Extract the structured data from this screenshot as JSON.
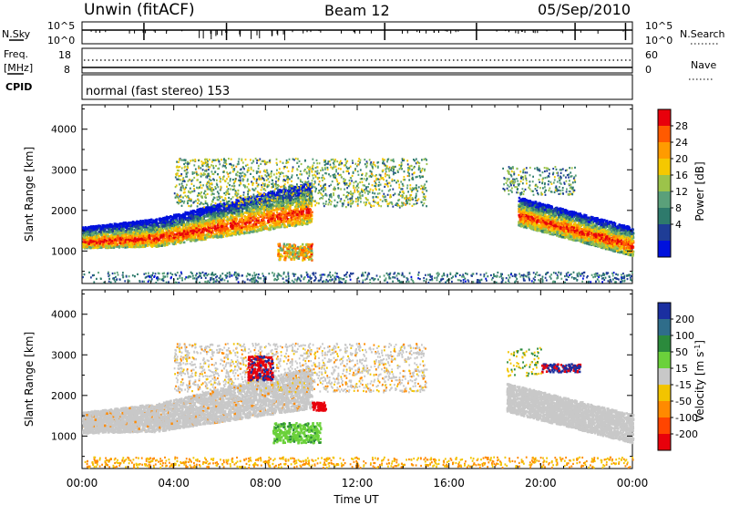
{
  "header": {
    "station": "Unwin (fitACF)",
    "beam": "Beam 12",
    "date": "05/Sep/2010"
  },
  "noise_panel": {
    "left_label": "N.Sky",
    "right_label": "N.Search",
    "left_ticks": [
      "10^5",
      "10^0"
    ],
    "right_ticks": [
      "10^5",
      "10^0"
    ]
  },
  "freq_panel": {
    "left_label_1": "Freq.",
    "left_label_2": "[MHz]",
    "right_label": "Nave",
    "left_ticks": [
      "18",
      "8"
    ],
    "right_ticks": [
      "60",
      "0"
    ]
  },
  "cpid_panel": {
    "label": "CPID",
    "text": "normal (fast stereo) 153"
  },
  "chart_data": [
    {
      "type": "heatmap",
      "name": "Power",
      "ylabel": "Slant Range [km]",
      "ylim": [
        200,
        4600
      ],
      "yticks": [
        1000,
        2000,
        3000,
        4000
      ],
      "x_range_hours": [
        0,
        24
      ],
      "colorbar": {
        "label": "Power [dB]",
        "ticks": [
          "28",
          "24",
          "20",
          "16",
          "12",
          "8",
          "4"
        ],
        "colors": [
          "#e8000b",
          "#ff5a00",
          "#ff9b00",
          "#f5c800",
          "#9cc34a",
          "#5aa07a",
          "#2e7a6c",
          "#1f3d96",
          "#0011dd"
        ]
      },
      "features": [
        {
          "description": "main echo band",
          "x": [
            0,
            10
          ],
          "range_km": [
            900,
            1900
          ],
          "power_dB": [
            12,
            28
          ]
        },
        {
          "description": "upper scatter",
          "x": [
            4,
            15
          ],
          "range_km": [
            2000,
            3300
          ],
          "power_dB": [
            4,
            20
          ]
        },
        {
          "description": "evening band",
          "x": [
            19,
            24
          ],
          "range_km": [
            1000,
            2300
          ],
          "power_dB": [
            8,
            28
          ]
        },
        {
          "description": "ground scatter near range",
          "x": [
            0,
            24
          ],
          "range_km": [
            200,
            500
          ],
          "power_dB": [
            4,
            12
          ]
        }
      ]
    },
    {
      "type": "heatmap",
      "name": "Velocity",
      "ylabel": "Slant Range [km]",
      "ylim": [
        200,
        4600
      ],
      "yticks": [
        1000,
        2000,
        3000,
        4000
      ],
      "x_range_hours": [
        0,
        24
      ],
      "colorbar": {
        "label": "Velocity [m s^-1]",
        "ticks": [
          "200",
          "100",
          "50",
          "15",
          "-15",
          "-50",
          "-100",
          "-200"
        ],
        "colors": [
          "#1a2fa0",
          "#2f6d8a",
          "#2b8a3c",
          "#6bd13b",
          "#c8c8c8",
          "#f2c400",
          "#ff8a00",
          "#ff4500",
          "#e8000b"
        ]
      },
      "features": [
        {
          "description": "main band mostly near zero velocity",
          "x": [
            0,
            10
          ],
          "range_km": [
            900,
            1900
          ],
          "velocity": [
            -15,
            15
          ]
        },
        {
          "description": "red patch",
          "x": [
            7.2,
            8.2
          ],
          "range_km": [
            2400,
            3000
          ],
          "velocity": [
            -200,
            -100
          ]
        },
        {
          "description": "green patch",
          "x": [
            8,
            10.5
          ],
          "range_km": [
            900,
            1400
          ],
          "velocity": [
            15,
            50
          ]
        },
        {
          "description": "evening band",
          "x": [
            18.5,
            24
          ],
          "range_km": [
            900,
            2100
          ],
          "velocity": [
            -15,
            15
          ]
        }
      ]
    }
  ],
  "x_axis": {
    "ticks": [
      "00:00",
      "04:00",
      "08:00",
      "12:00",
      "16:00",
      "20:00",
      "00:00"
    ],
    "label": "Time UT"
  },
  "y_axis_label": "Slant Range [km]",
  "y_tick_labels": [
    "1000",
    "2000",
    "3000",
    "4000"
  ]
}
